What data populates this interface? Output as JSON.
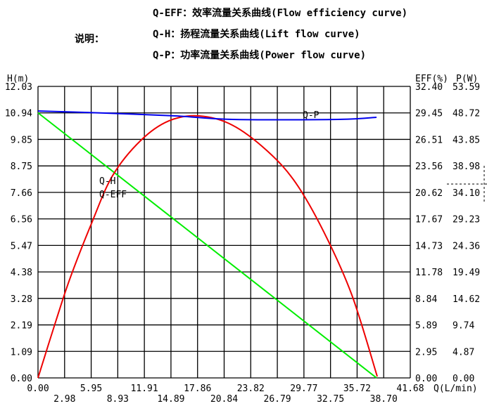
{
  "legend": {
    "title": "说明：",
    "items": [
      "Q-EFF：效率流量关系曲线(Flow efficiency curve)",
      "Q-H：扬程流量关系曲线(Lift flow curve)",
      "Q-P：功率流量关系曲线(Power flow curve)"
    ]
  },
  "chart_data": {
    "type": "line",
    "grid": true,
    "xlabel": "Q(L/min)",
    "ylabel_left": "H(m)",
    "ylabel_right_1": "EFF(%)",
    "ylabel_right_2": "P(W)",
    "xlim": [
      0,
      41.68
    ],
    "ylim_h": [
      0,
      12.03
    ],
    "ylim_eff": [
      0,
      32.4
    ],
    "ylim_p": [
      0,
      53.59
    ],
    "x_ticks": [
      "0.00",
      "2.98",
      "5.95",
      "8.93",
      "11.91",
      "14.89",
      "17.86",
      "20.84",
      "23.82",
      "26.79",
      "29.77",
      "32.75",
      "35.72",
      "38.70",
      "41.68"
    ],
    "h_ticks": [
      "0.00",
      "1.09",
      "2.19",
      "3.28",
      "4.38",
      "5.47",
      "6.56",
      "7.66",
      "8.75",
      "9.85",
      "10.94",
      "12.03"
    ],
    "eff_ticks": [
      "0.00",
      "2.95",
      "5.89",
      "8.84",
      "11.78",
      "14.73",
      "17.67",
      "20.62",
      "23.56",
      "26.51",
      "29.45",
      "32.40"
    ],
    "p_ticks": [
      "0.00",
      "4.87",
      "9.74",
      "14.62",
      "19.49",
      "24.36",
      "29.23",
      "34.10",
      "38.98",
      "43.85",
      "48.72",
      "53.59"
    ],
    "series": [
      {
        "name": "Q-H",
        "axis": "h",
        "color": "#00ee00",
        "x": [
          0,
          37.9
        ],
        "y": [
          10.94,
          0
        ]
      },
      {
        "name": "Q-EFF",
        "axis": "eff",
        "color": "#ee0000",
        "x": [
          0,
          2.05,
          3.62,
          5.99,
          8.35,
          11.5,
          14.65,
          18.04,
          21.75,
          25.69,
          28.84,
          31.99,
          35.14,
          37.98
        ],
        "y": [
          0,
          6.48,
          11.16,
          17.17,
          22.48,
          26.39,
          28.57,
          29.12,
          28.1,
          25.21,
          21.7,
          16.24,
          9.21,
          0.16
        ]
      },
      {
        "name": "Q-P",
        "axis": "p",
        "color": "#0000ee",
        "x": [
          0,
          7.56,
          15.44,
          21.75,
          33.56,
          37.9
        ],
        "y": [
          49.07,
          48.68,
          48.17,
          47.52,
          47.52,
          47.91
        ]
      }
    ]
  }
}
